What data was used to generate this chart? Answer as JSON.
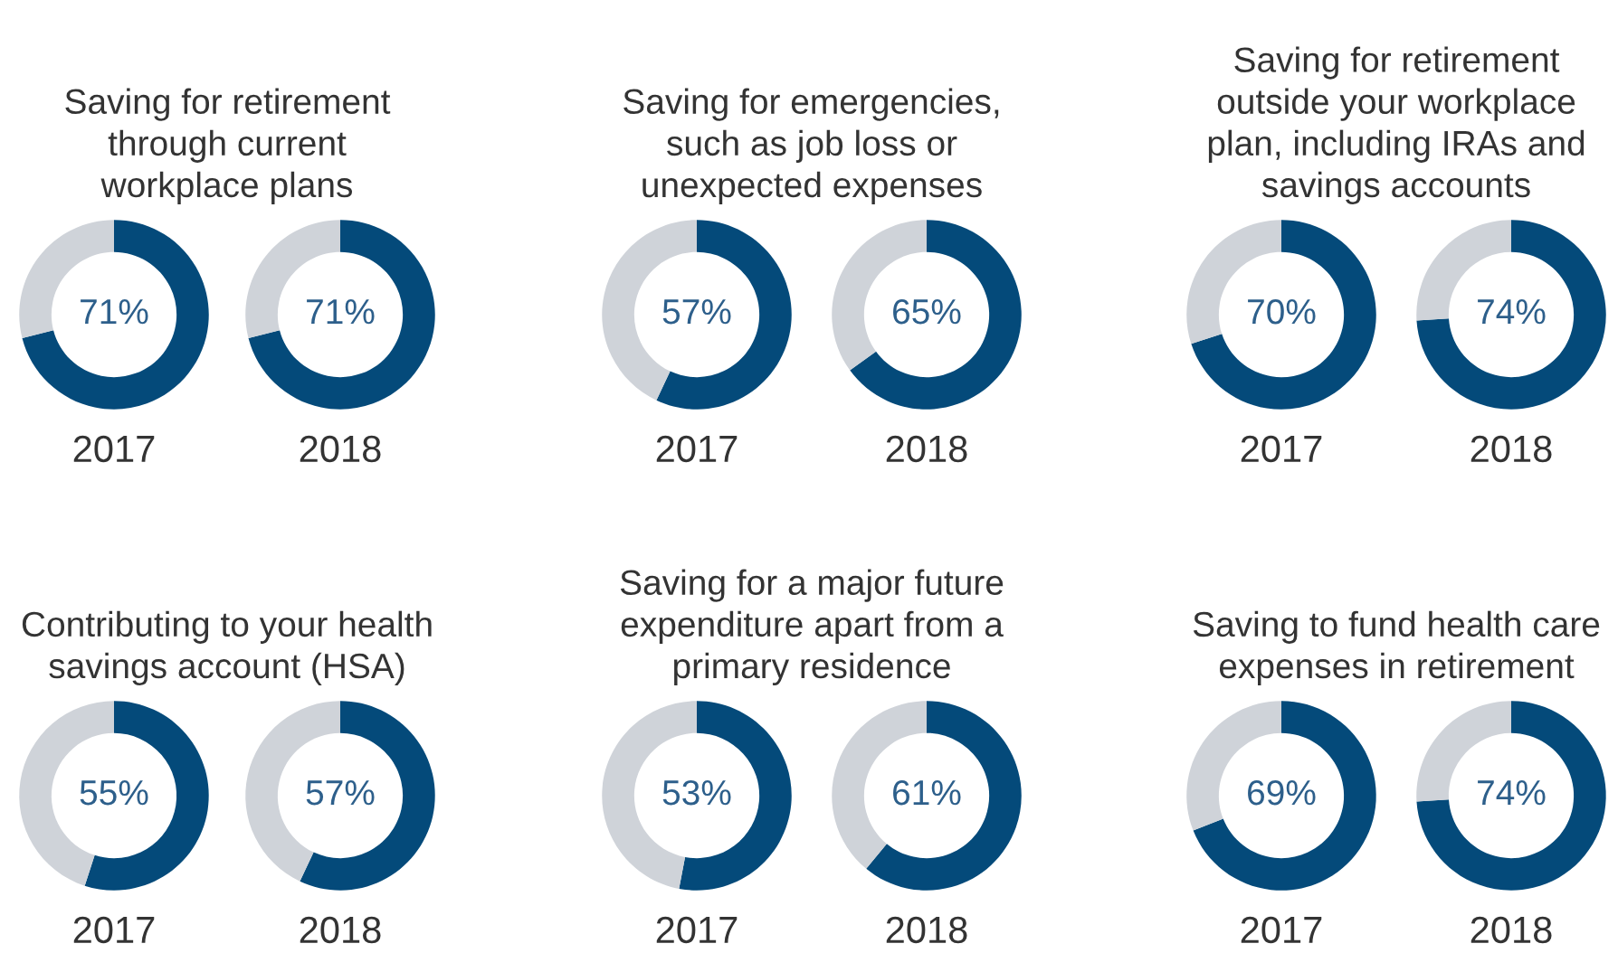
{
  "chart_data": [
    {
      "type": "donut",
      "title": "Saving for retirement\nthrough current\nworkplace plans",
      "xlabel": "2017",
      "categories": [
        null,
        null
      ],
      "values": [
        71,
        29
      ],
      "colors": [
        "#044a7a",
        "#cfd3d9"
      ],
      "value_labels": [
        "71%",
        null
      ]
    },
    {
      "type": "donut",
      "xlabel": "2018",
      "categories": [
        null,
        null
      ],
      "values": [
        71,
        29
      ],
      "colors": [
        "#044a7a",
        "#cfd3d9"
      ],
      "value_labels": [
        "71%",
        null
      ]
    },
    {
      "type": "donut",
      "title": "Saving for emergencies,\nsuch as job loss or\nunexpected expenses",
      "xlabel": "2017",
      "categories": [
        null,
        null
      ],
      "values": [
        57,
        43
      ],
      "colors": [
        "#044a7a",
        "#cfd3d9"
      ],
      "value_labels": [
        "57%",
        null
      ]
    },
    {
      "type": "donut",
      "xlabel": "2018",
      "categories": [
        null,
        null
      ],
      "values": [
        65,
        35
      ],
      "colors": [
        "#044a7a",
        "#cfd3d9"
      ],
      "value_labels": [
        "65%",
        null
      ]
    },
    {
      "type": "donut",
      "title": "Saving for retirement\noutside your workplace\nplan, including IRAs and\nsavings accounts",
      "xlabel": "2017",
      "categories": [
        null,
        null
      ],
      "values": [
        70,
        30
      ],
      "colors": [
        "#044a7a",
        "#cfd3d9"
      ],
      "value_labels": [
        "70%",
        null
      ]
    },
    {
      "type": "donut",
      "xlabel": "2018",
      "categories": [
        null,
        null
      ],
      "values": [
        74,
        26
      ],
      "colors": [
        "#044a7a",
        "#cfd3d9"
      ],
      "value_labels": [
        "74%",
        null
      ]
    },
    {
      "type": "donut",
      "title": "Contributing to your health\nsavings account (HSA)",
      "xlabel": "2017",
      "categories": [
        null,
        null
      ],
      "values": [
        55,
        45
      ],
      "colors": [
        "#044a7a",
        "#cfd3d9"
      ],
      "value_labels": [
        "55%",
        null
      ]
    },
    {
      "type": "donut",
      "xlabel": "2018",
      "categories": [
        null,
        null
      ],
      "values": [
        57,
        43
      ],
      "colors": [
        "#044a7a",
        "#cfd3d9"
      ],
      "value_labels": [
        "57%",
        null
      ]
    },
    {
      "type": "donut",
      "title": "Saving for a major future\nexpenditure apart from a\nprimary residence",
      "xlabel": "2017",
      "categories": [
        null,
        null
      ],
      "values": [
        53,
        47
      ],
      "colors": [
        "#044a7a",
        "#cfd3d9"
      ],
      "value_labels": [
        "53%",
        null
      ]
    },
    {
      "type": "donut",
      "xlabel": "2018",
      "categories": [
        null,
        null
      ],
      "values": [
        61,
        39
      ],
      "colors": [
        "#044a7a",
        "#cfd3d9"
      ],
      "value_labels": [
        "61%",
        null
      ]
    },
    {
      "type": "donut",
      "title": "Saving to fund health care\nexpenses in retirement",
      "xlabel": "2017",
      "categories": [
        null,
        null
      ],
      "values": [
        69,
        31
      ],
      "colors": [
        "#044a7a",
        "#cfd3d9"
      ],
      "value_labels": [
        "69%",
        null
      ]
    },
    {
      "type": "donut",
      "xlabel": "2018",
      "categories": [
        null,
        null
      ],
      "values": [
        74,
        26
      ],
      "colors": [
        "#044a7a",
        "#cfd3d9"
      ],
      "value_labels": [
        "74%",
        null
      ]
    }
  ]
}
